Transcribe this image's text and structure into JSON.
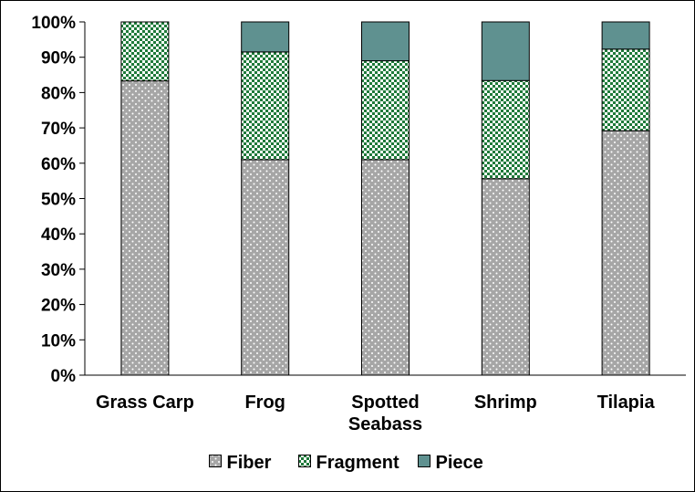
{
  "chart_data": {
    "type": "bar",
    "stacked": true,
    "percent": true,
    "categories": [
      [
        "Grass Carp"
      ],
      [
        "Frog"
      ],
      [
        "Spotted",
        "Seabass"
      ],
      [
        "Shrimp"
      ],
      [
        "Tilapia"
      ]
    ],
    "series": [
      {
        "name": "Fiber",
        "values": [
          83.3,
          61.0,
          61.0,
          55.6,
          69.2
        ],
        "color": "#a6a6a6",
        "pattern": "dots"
      },
      {
        "name": "Fragment",
        "values": [
          16.7,
          30.5,
          28.0,
          27.8,
          23.1
        ],
        "color": "#1f7a3a",
        "pattern": "checker"
      },
      {
        "name": "Piece",
        "values": [
          0,
          8.5,
          11.0,
          16.6,
          7.7
        ],
        "color": "#5f9190",
        "pattern": "solid"
      }
    ],
    "ylim": [
      0,
      100
    ],
    "yticks": [
      "0%",
      "10%",
      "20%",
      "30%",
      "40%",
      "50%",
      "60%",
      "70%",
      "80%",
      "90%",
      "100%"
    ],
    "grid": false,
    "legend_position": "bottom",
    "title": "",
    "xlabel": "",
    "ylabel": ""
  }
}
